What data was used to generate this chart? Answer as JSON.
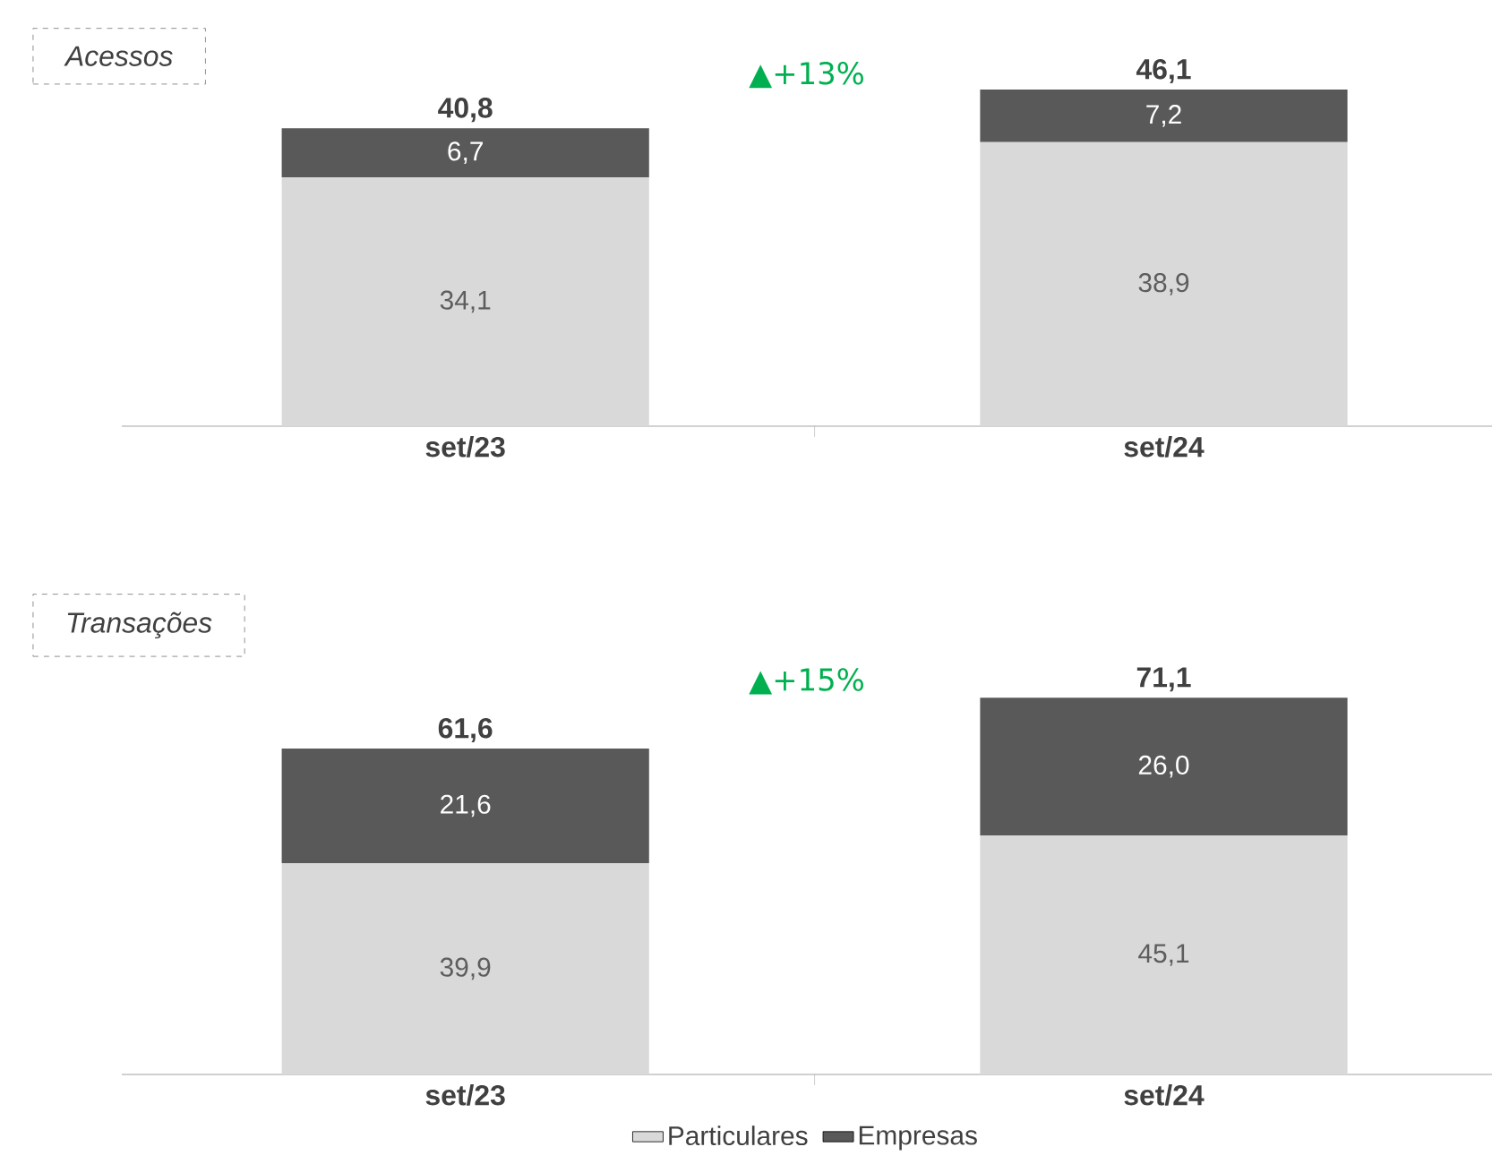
{
  "chart_data": [
    {
      "type": "bar",
      "title": "Acessos",
      "stacked": true,
      "categories": [
        "set/23",
        "set/24"
      ],
      "series": [
        {
          "color": "#d9d9d9",
          "values": [
            34.1,
            38.9
          ],
          "value_labels": [
            "34,1",
            "38,9"
          ]
        },
        {
          "color": "#595959",
          "values": [
            6.7,
            7.2
          ],
          "value_labels": [
            "6,7",
            "7,2"
          ]
        }
      ],
      "totals": [
        "40,8",
        "46,1"
      ],
      "annotations": [
        "▲+13%"
      ]
    },
    {
      "type": "bar",
      "title": "Transações",
      "stacked": true,
      "categories": [
        "set/23",
        "set/24"
      ],
      "series": [
        {
          "name": "Particulares",
          "color": "#d9d9d9",
          "values": [
            39.9,
            45.1
          ],
          "value_labels": [
            "39,9",
            "45,1"
          ]
        },
        {
          "name": "Empresas",
          "color": "#595959",
          "values": [
            21.6,
            26.0
          ],
          "value_labels": [
            "21,6",
            "26,0"
          ]
        }
      ],
      "totals": [
        "61,6",
        "71,1"
      ],
      "annotations": [
        "▲+15%"
      ],
      "legend": "bottom"
    }
  ]
}
